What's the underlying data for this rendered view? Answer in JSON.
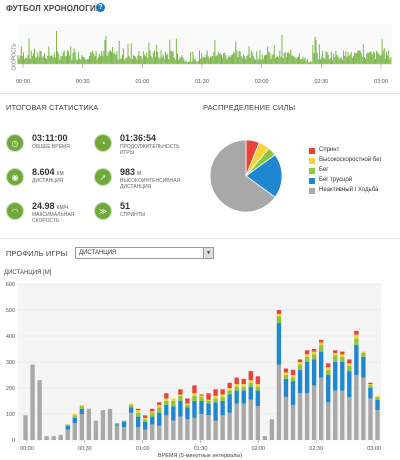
{
  "header": {
    "title": "ФУТБОЛ ХРОНОЛОГИЯ",
    "help_icon": "?",
    "speed_axis_label": "СКОРОСТЬ"
  },
  "timeline": {
    "ticks": [
      "00:00",
      "00:30",
      "01:00",
      "01:30",
      "02:00",
      "02:30",
      "03:00"
    ],
    "color": "#7ab648"
  },
  "stats": {
    "title": "ИТОГОВАЯ СТАТИСТИКА",
    "items": [
      {
        "value": "03:11:00",
        "unit": "",
        "label": "ОБЩЕЕ ВРЕМЯ",
        "icon": "clock-icon"
      },
      {
        "value": "01:36:54",
        "unit": "",
        "label": "ПРОДОЛЖИТЕЛЬНОСТЬ ИГРЫ",
        "icon": "play-time-icon"
      },
      {
        "value": "8.604",
        "unit": "КМ",
        "label": "ДИСТАНЦИЯ",
        "icon": "distance-icon"
      },
      {
        "value": "983",
        "unit": "М",
        "label": "ВЫСОКОИНТЕНСИВНАЯ ДИСТАНЦИЯ",
        "icon": "high-intensity-icon"
      },
      {
        "value": "24.98",
        "unit": "КМ/Ч",
        "label": "МАКСИМАЛЬНАЯ СКОРОСТЬ",
        "icon": "speedometer-icon"
      },
      {
        "value": "51",
        "unit": "",
        "label": "СПРИНТЫ",
        "icon": "sprint-icon"
      }
    ]
  },
  "distribution": {
    "title": "РАСПРЕДЕЛЕНИЕ СИЛЫ",
    "legend": [
      {
        "label": "Спринт",
        "color": "#e8423a"
      },
      {
        "label": "Высокоскоростной бег",
        "color": "#f4d43a"
      },
      {
        "label": "Бег",
        "color": "#8cc63f"
      },
      {
        "label": "Бег трусцой",
        "color": "#1f87d0"
      },
      {
        "label": "Неактивный / Ходьба",
        "color": "#a8a8a8"
      }
    ]
  },
  "profile": {
    "title": "ПРОФИЛЬ ИГРЫ",
    "select_value": "ДИСТАНЦИЯ"
  },
  "chart_data": {
    "type": "bar",
    "title": "",
    "ylabel": "ДИСТАНЦИЯ [М]",
    "xlabel": "ВРЕМЯ (5-минутные интервалы)",
    "ylim": [
      0,
      600
    ],
    "yticks": [
      0,
      100,
      200,
      300,
      400,
      500,
      600
    ],
    "xticks": [
      "00:00",
      "00:30",
      "01:00",
      "01:30",
      "02:00",
      "02:30",
      "03:00"
    ],
    "series": [
      {
        "name": "Неактивный / Ходьба",
        "color": "#a8a8a8",
        "values": [
          95,
          290,
          230,
          15,
          15,
          20,
          40,
          65,
          100,
          115,
          75,
          115,
          120,
          55,
          50,
          105,
          50,
          40,
          60,
          55,
          95,
          75,
          90,
          80,
          85,
          100,
          95,
          75,
          95,
          105,
          140,
          140,
          155,
          130,
          15,
          80,
          290,
          165,
          135,
          180,
          180,
          210,
          240,
          145,
          190,
          190,
          165,
          250,
          240,
          160,
          115
        ]
      },
      {
        "name": "Бег трусцой",
        "color": "#1f87d0",
        "values": [
          0,
          0,
          0,
          0,
          0,
          0,
          15,
          20,
          20,
          0,
          0,
          0,
          0,
          5,
          20,
          20,
          40,
          30,
          30,
          50,
          40,
          55,
          60,
          45,
          65,
          50,
          45,
          70,
          55,
          70,
          50,
          50,
          50,
          60,
          0,
          0,
          160,
          70,
          90,
          90,
          120,
          100,
          100,
          105,
          110,
          110,
          100,
          115,
          80,
          40,
          40
        ]
      },
      {
        "name": "Бег",
        "color": "#8cc63f",
        "values": [
          0,
          0,
          0,
          0,
          0,
          0,
          5,
          10,
          10,
          5,
          0,
          0,
          0,
          5,
          5,
          10,
          15,
          10,
          15,
          20,
          15,
          20,
          20,
          10,
          20,
          15,
          10,
          15,
          15,
          15,
          15,
          15,
          15,
          15,
          0,
          0,
          25,
          15,
          15,
          20,
          20,
          20,
          25,
          20,
          25,
          20,
          20,
          25,
          15,
          10,
          10
        ]
      },
      {
        "name": "Высокоскоростной бег",
        "color": "#f4d43a",
        "values": [
          0,
          0,
          0,
          0,
          0,
          0,
          0,
          5,
          5,
          0,
          0,
          0,
          0,
          0,
          0,
          5,
          10,
          5,
          5,
          10,
          10,
          10,
          5,
          5,
          10,
          5,
          5,
          10,
          10,
          10,
          10,
          10,
          10,
          10,
          0,
          0,
          10,
          10,
          10,
          10,
          10,
          10,
          10,
          10,
          10,
          10,
          10,
          15,
          5,
          5,
          5
        ]
      },
      {
        "name": "Спринт",
        "color": "#e8423a",
        "values": [
          0,
          0,
          0,
          0,
          0,
          0,
          0,
          0,
          0,
          0,
          0,
          0,
          0,
          0,
          0,
          0,
          5,
          10,
          10,
          10,
          20,
          0,
          20,
          20,
          30,
          5,
          25,
          25,
          20,
          20,
          25,
          20,
          35,
          30,
          0,
          0,
          15,
          15,
          20,
          10,
          15,
          10,
          10,
          15,
          10,
          10,
          15,
          15,
          0,
          5,
          0
        ]
      }
    ],
    "pie": [
      {
        "label": "Спринт",
        "value": 6
      },
      {
        "label": "Высокоскоростной бег",
        "value": 5
      },
      {
        "label": "Бег",
        "value": 4
      },
      {
        "label": "Бег трусцой",
        "value": 20
      },
      {
        "label": "Неактивный / Ходьба",
        "value": 65
      }
    ]
  }
}
